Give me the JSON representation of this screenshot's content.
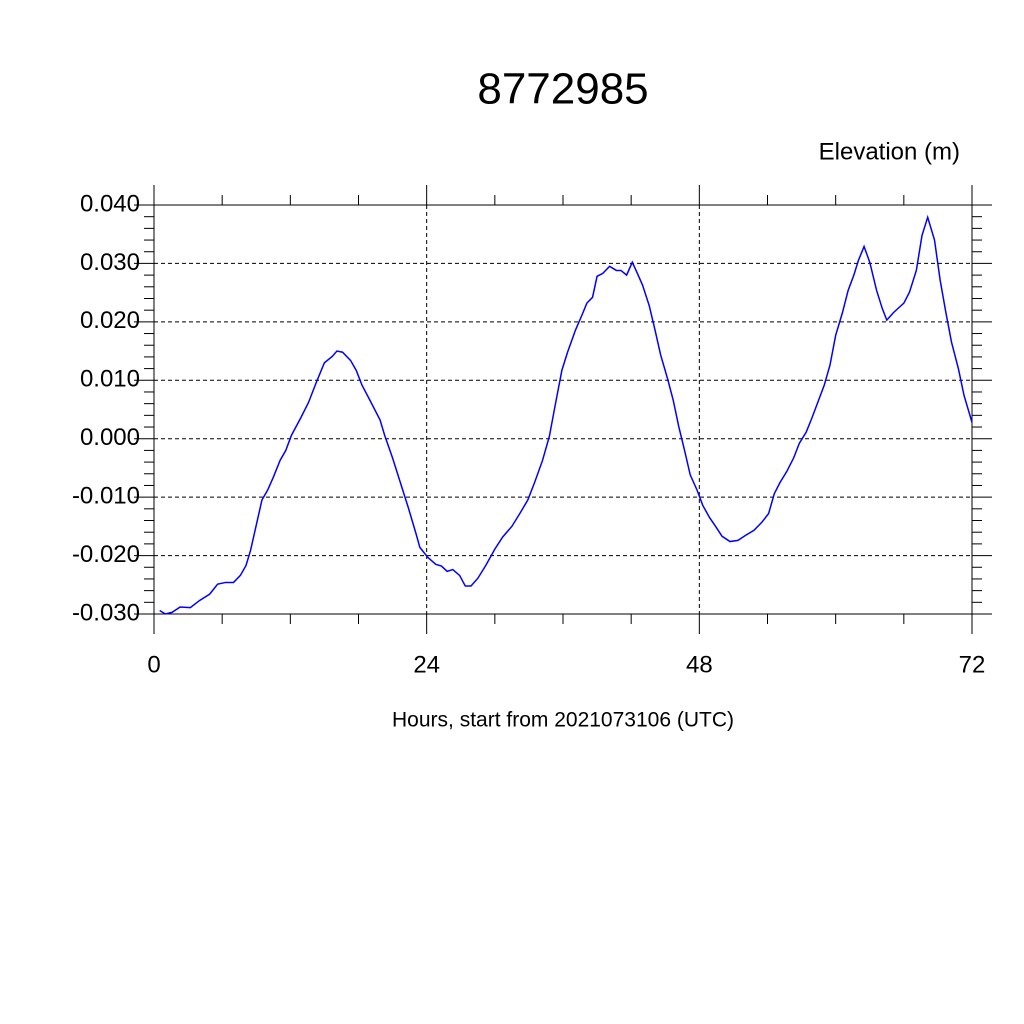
{
  "chart_data": {
    "type": "line",
    "title": "8772985",
    "ylabel": "Elevation (m)",
    "xlabel": "Hours, start from 2021073106 (UTC)",
    "grid": true,
    "xlim": [
      0,
      72
    ],
    "xticks": [
      0,
      24,
      48,
      72
    ],
    "ylim": [
      -0.03,
      0.04
    ],
    "yticks": [
      {
        "value": -0.03,
        "label": "-0.030"
      },
      {
        "value": -0.02,
        "label": "-0.020"
      },
      {
        "value": -0.01,
        "label": "-0.010"
      },
      {
        "value": 0,
        "label": "0.000"
      },
      {
        "value": 0.01,
        "label": "0.010"
      },
      {
        "value": 0.02,
        "label": "0.020"
      },
      {
        "value": 0.03,
        "label": "0.030"
      },
      {
        "value": 0.04,
        "label": "0.040"
      }
    ],
    "x": [
      0.5,
      1,
      1.6,
      2.3,
      3.2,
      4,
      4.9,
      5.6,
      6.3,
      7,
      7.6,
      8.1,
      8.5,
      9,
      9.5,
      10,
      10.5,
      11.1,
      11.6,
      12.1,
      12.9,
      13.6,
      14.3,
      15,
      15.7,
      16.1,
      16.6,
      17.3,
      17.8,
      18.3,
      19,
      19.9,
      20.3,
      21,
      21.7,
      22.4,
      23.1,
      23.4,
      24.1,
      24.8,
      25.3,
      25.8,
      26.3,
      26.9,
      27.4,
      27.9,
      28.5,
      29.2,
      30,
      30.7,
      31.5,
      32.2,
      32.9,
      33.5,
      34.2,
      34.8,
      35.3,
      35.9,
      36.4,
      37.1,
      37.7,
      38.1,
      38.6,
      39,
      39.5,
      40.1,
      40.7,
      41.1,
      41.6,
      42.1,
      42.5,
      43,
      43.6,
      44.1,
      44.6,
      45.2,
      45.7,
      46.2,
      46.7,
      47.2,
      47.8,
      48.3,
      48.9,
      49.5,
      50,
      50.7,
      51.4,
      52.1,
      52.8,
      53.5,
      54.1,
      54.6,
      55.1,
      55.7,
      56.3,
      56.8,
      57.4,
      57.9,
      58.5,
      59,
      59.5,
      60,
      60.6,
      61.1,
      61.6,
      62,
      62.5,
      63,
      63.6,
      64.1,
      64.5,
      65.1,
      65.6,
      66,
      66.5,
      67.1,
      67.6,
      68.1,
      68.7,
      69.2,
      69.7,
      70.2,
      70.8,
      71.3,
      72
    ],
    "series": [
      {
        "color": "#0000ff",
        "values": [
          -0.0294,
          -0.03,
          -0.0297,
          -0.0288,
          -0.0289,
          -0.0277,
          -0.0266,
          -0.0249,
          -0.0246,
          -0.0246,
          -0.0234,
          -0.0217,
          -0.0191,
          -0.0148,
          -0.0105,
          -0.0088,
          -0.0066,
          -0.0037,
          -0.002,
          0.0006,
          0.0035,
          0.0062,
          0.0097,
          0.013,
          0.0141,
          0.015,
          0.0148,
          0.0134,
          0.0117,
          0.0092,
          0.0066,
          0.0032,
          0.0006,
          -0.0033,
          -0.0076,
          -0.0119,
          -0.0165,
          -0.0186,
          -0.0203,
          -0.0215,
          -0.0218,
          -0.0227,
          -0.0224,
          -0.0234,
          -0.0252,
          -0.0252,
          -0.0239,
          -0.0217,
          -0.0189,
          -0.0168,
          -0.015,
          -0.0128,
          -0.0105,
          -0.0075,
          -0.0037,
          0.0004,
          0.0056,
          0.0117,
          0.0148,
          0.0186,
          0.0213,
          0.0232,
          0.0242,
          0.0278,
          0.0283,
          0.0295,
          0.0288,
          0.0288,
          0.028,
          0.0302,
          0.0285,
          0.0263,
          0.0227,
          0.0186,
          0.0143,
          0.0103,
          0.0066,
          0.002,
          -0.002,
          -0.0062,
          -0.0088,
          -0.0114,
          -0.0135,
          -0.0152,
          -0.0167,
          -0.0176,
          -0.0174,
          -0.0165,
          -0.0157,
          -0.0143,
          -0.0128,
          -0.0094,
          -0.0075,
          -0.0056,
          -0.0033,
          -0.0008,
          0.0011,
          0.0035,
          0.0066,
          0.0092,
          0.0126,
          0.0177,
          0.0216,
          0.0254,
          0.028,
          0.0305,
          0.0329,
          0.0302,
          0.0254,
          0.0223,
          0.0203,
          0.0216,
          0.0225,
          0.0232,
          0.0251,
          0.0288,
          0.0348,
          0.0379,
          0.034,
          0.0271,
          0.0216,
          0.0165,
          0.012,
          0.0074,
          0.0028
        ]
      }
    ]
  }
}
